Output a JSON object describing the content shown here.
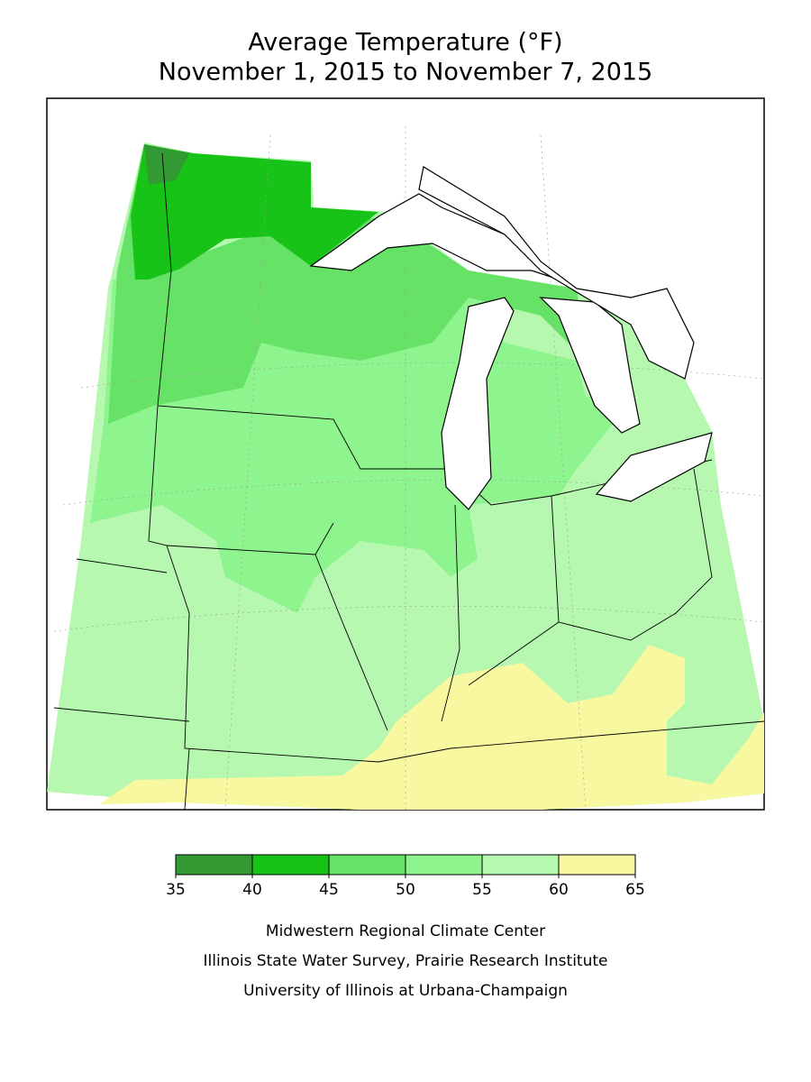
{
  "title": [
    "Average Temperature (°F)",
    "November 1, 2015 to November 7, 2015"
  ],
  "legend": {
    "bins": [
      35,
      40,
      45,
      50,
      55,
      60,
      65
    ],
    "colors": [
      "#339933",
      "#18c318",
      "#66e266",
      "#8ef58e",
      "#b6f8b0",
      "#f8f8a0"
    ]
  },
  "credits": [
    "Midwestern Regional Climate Center",
    "Illinois State Water Survey, Prairie Research Institute",
    "University of Illinois at Urbana-Champaign"
  ]
}
